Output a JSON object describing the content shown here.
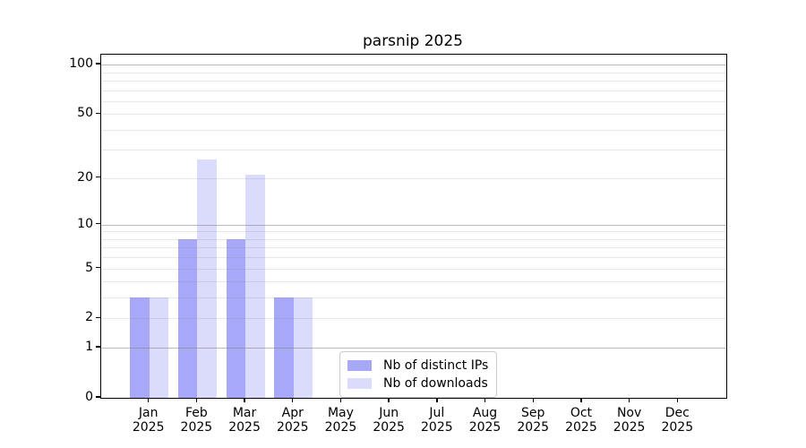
{
  "chart_data": {
    "type": "bar",
    "title": "parsnip 2025",
    "categories": [
      "Jan",
      "Feb",
      "Mar",
      "Apr",
      "May",
      "Jun",
      "Jul",
      "Aug",
      "Sep",
      "Oct",
      "Nov",
      "Dec"
    ],
    "year_label": "2025",
    "series": [
      {
        "name": "Nb of distinct IPs",
        "color": "#a8a8f8",
        "values": [
          3,
          8,
          8,
          3,
          0,
          0,
          0,
          0,
          0,
          0,
          0,
          0
        ]
      },
      {
        "name": "Nb of downloads",
        "color": "#dbdbfb",
        "values": [
          3,
          26,
          21,
          3,
          0,
          0,
          0,
          0,
          0,
          0,
          0,
          0
        ]
      }
    ],
    "yscale": "log1p",
    "ylim": [
      0,
      115
    ],
    "yticks": [
      0,
      1,
      2,
      5,
      10,
      20,
      50,
      100
    ],
    "ytick_major": [
      1,
      10,
      100
    ],
    "ytick_minor_grid": [
      2,
      3,
      4,
      5,
      6,
      7,
      8,
      9,
      20,
      30,
      40,
      50,
      60,
      70,
      80,
      90
    ],
    "grid": true,
    "legend_position": "lower center",
    "xlabel": "",
    "ylabel": ""
  }
}
